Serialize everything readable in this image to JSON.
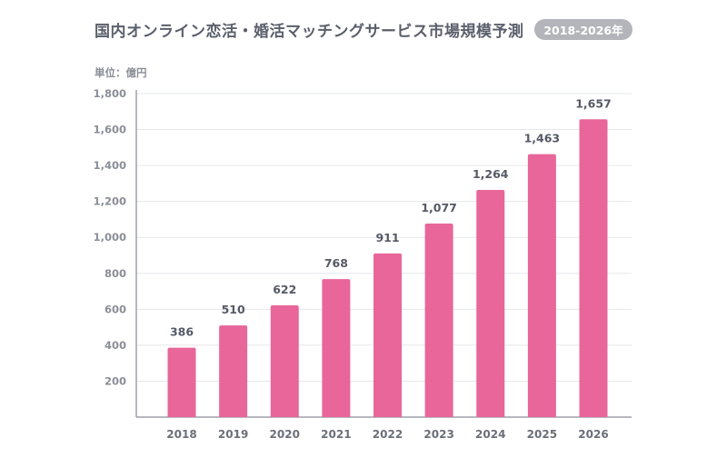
{
  "header": {
    "title": "国内オンライン恋活・婚活マッチングサービス市場規模予測",
    "period_badge": "2018-2026年"
  },
  "chart_data": {
    "type": "bar",
    "unit_label": "単位：億円",
    "categories": [
      "2018",
      "2019",
      "2020",
      "2021",
      "2022",
      "2023",
      "2024",
      "2025",
      "2026"
    ],
    "values": [
      386,
      510,
      622,
      768,
      911,
      1077,
      1264,
      1463,
      1657
    ],
    "value_labels": [
      "386",
      "510",
      "622",
      "768",
      "911",
      "1,077",
      "1,264",
      "1,463",
      "1,657"
    ],
    "y_ticks": [
      200,
      400,
      600,
      800,
      1000,
      1200,
      1400,
      1600,
      1800
    ],
    "y_tick_labels": [
      "200",
      "400",
      "600",
      "800",
      "1,000",
      "1,200",
      "1,400",
      "1,600",
      "1,800"
    ],
    "ylim": [
      0,
      1800
    ],
    "grid": true,
    "colors": {
      "bar": "#e8669a",
      "grid": "#e6e7ea",
      "axis": "#9ea1a8"
    }
  }
}
